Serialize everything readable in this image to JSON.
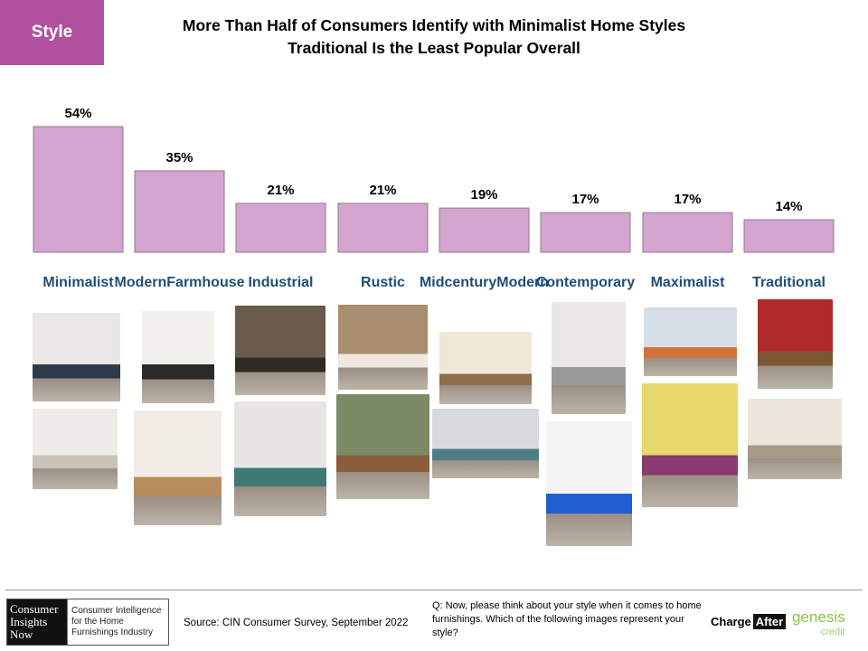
{
  "tag": "Style",
  "title_line1": "More Than Half of Consumers Identify with Minimalist Home Styles",
  "title_line2": "Traditional  Is the Least Popular Overall",
  "chart_data": {
    "type": "bar",
    "categories": [
      "Minimalist",
      "Modern Farmhouse",
      "Industrial",
      "Rustic",
      "Midcentury Modern",
      "Contemporary",
      "Maximalist",
      "Traditional"
    ],
    "values": [
      54,
      35,
      21,
      21,
      19,
      17,
      17,
      14
    ],
    "value_labels": [
      "54%",
      "35%",
      "21%",
      "21%",
      "19%",
      "17%",
      "17%",
      "14%"
    ],
    "bar_color": "#d4a5cf",
    "label_color": "#1f4e79"
  },
  "categories_display": [
    [
      "Minimalist"
    ],
    [
      "Modern",
      "Farmhouse"
    ],
    [
      "Industrial"
    ],
    [
      "Rustic"
    ],
    [
      "Midcentury",
      "Modern"
    ],
    [
      "Contemporary"
    ],
    [
      "Maximalist"
    ],
    [
      "Traditional"
    ]
  ],
  "footer": {
    "logo_left": "Consumer Insights Now",
    "logo_right": "Consumer Intelligence for the Home Furnishings Industry",
    "source": "Source: CIN Consumer Survey, September  2022",
    "question": "Q: Now,  please think about your style when  it comes to home furnishings. Which of the following images represent your style?",
    "brand1_a": "Charge",
    "brand1_b": "After",
    "brand2_a": "genesis",
    "brand2_b": "credit"
  }
}
